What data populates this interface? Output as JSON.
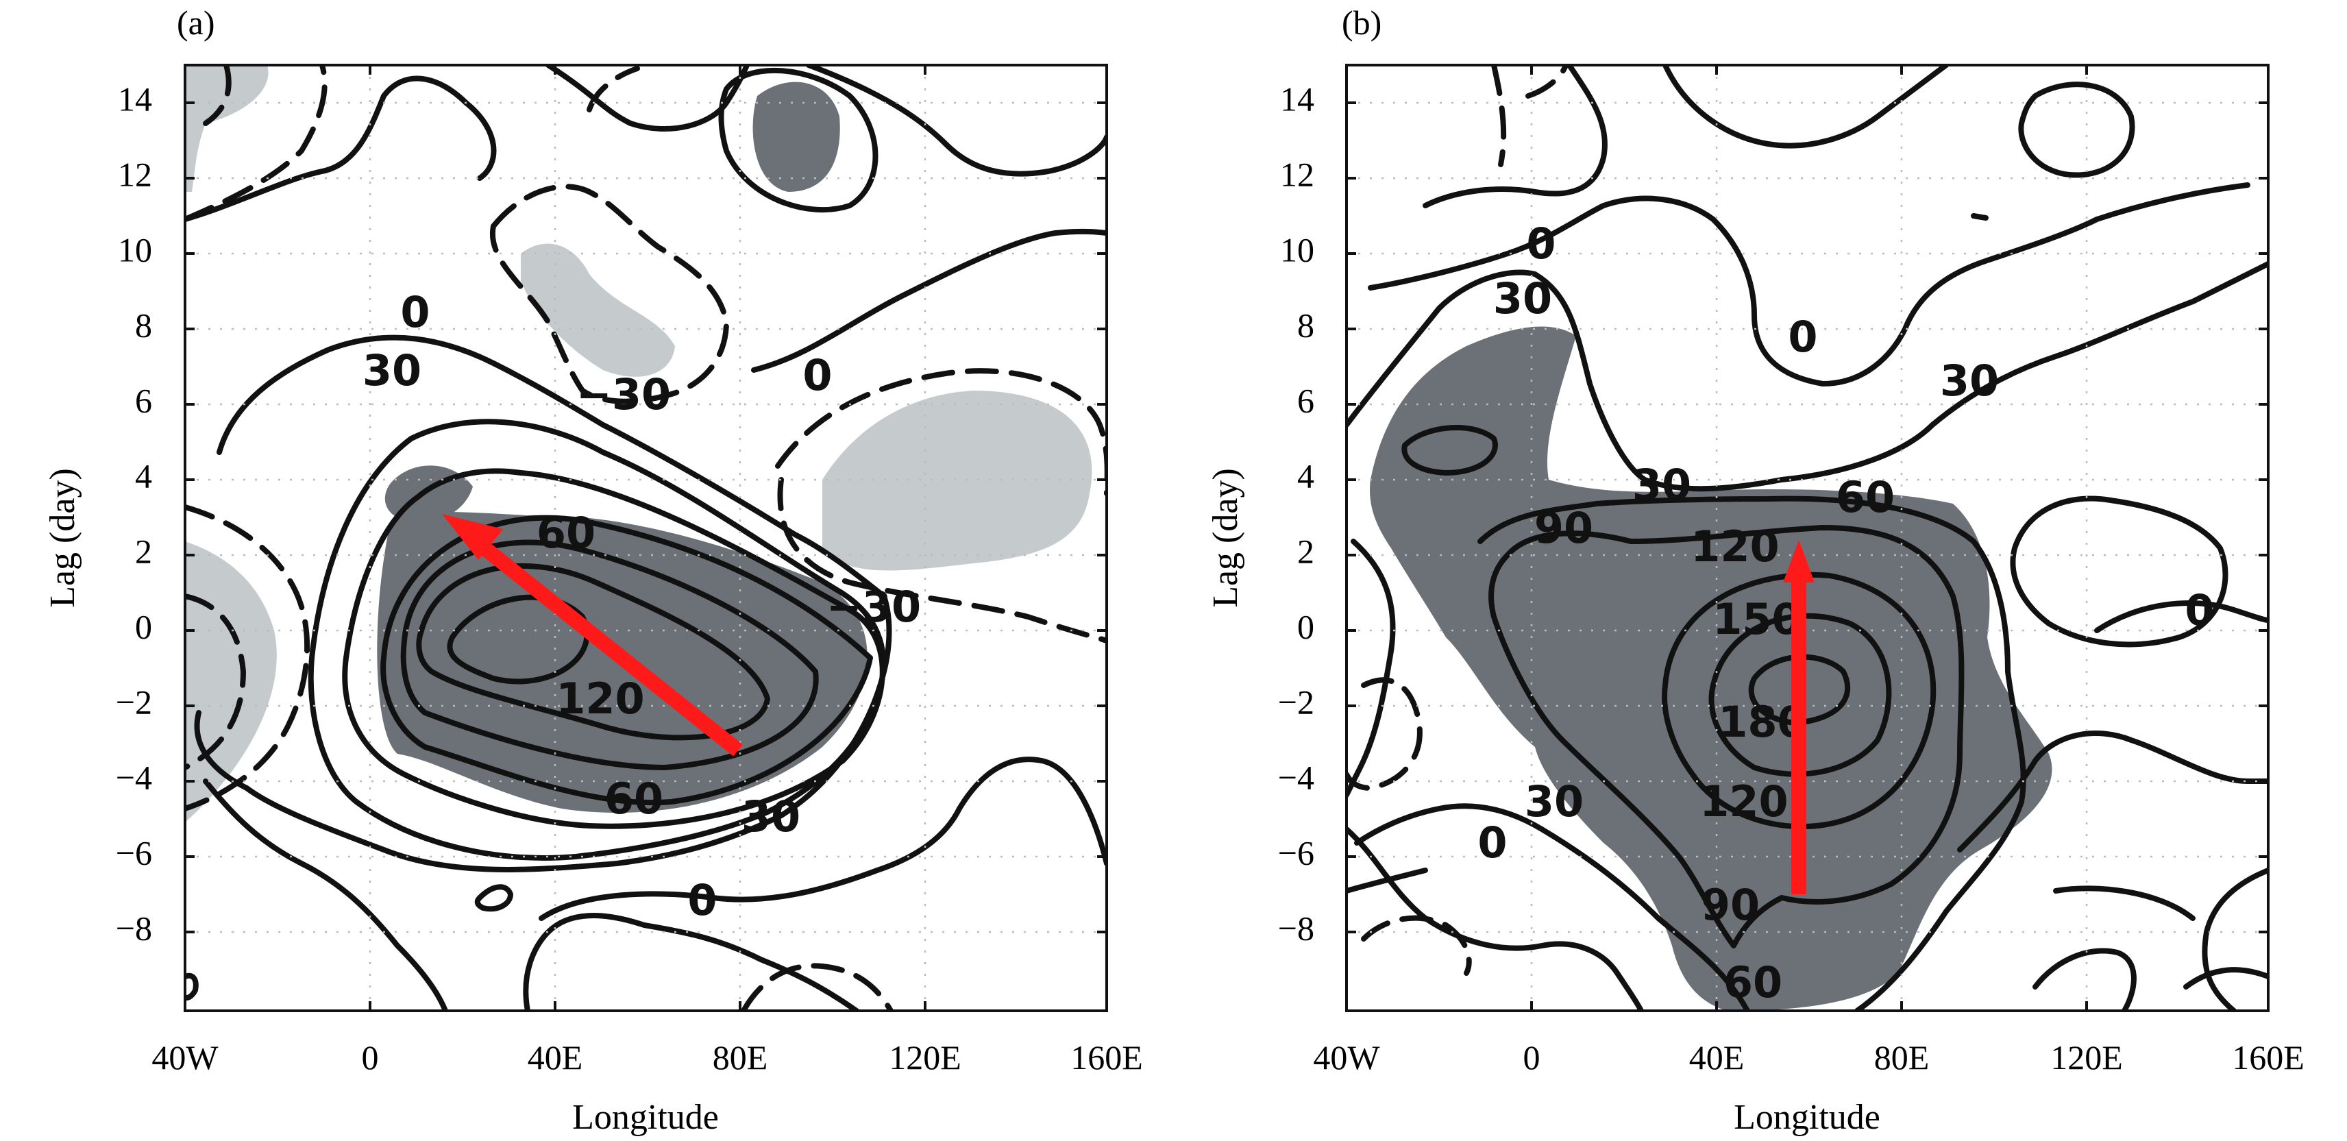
{
  "chart_data": [
    {
      "type": "contour",
      "panel_label": "(a)",
      "xlabel": "Longitude",
      "ylabel": "Lag (day)",
      "x_ticks": [
        {
          "value": -40,
          "label": "40W"
        },
        {
          "value": 0,
          "label": "0"
        },
        {
          "value": 40,
          "label": "40E"
        },
        {
          "value": 80,
          "label": "80E"
        },
        {
          "value": 120,
          "label": "120E"
        },
        {
          "value": 160,
          "label": "160E"
        }
      ],
      "y_ticks": [
        {
          "value": 14,
          "label": "14"
        },
        {
          "value": 12,
          "label": "12"
        },
        {
          "value": 10,
          "label": "10"
        },
        {
          "value": 8,
          "label": "8"
        },
        {
          "value": 6,
          "label": "6"
        },
        {
          "value": 4,
          "label": "4"
        },
        {
          "value": 2,
          "label": "2"
        },
        {
          "value": 0,
          "label": "0"
        },
        {
          "value": -2,
          "label": "−2"
        },
        {
          "value": -4,
          "label": "−4"
        },
        {
          "value": -6,
          "label": "−6"
        },
        {
          "value": -8,
          "label": "−8"
        }
      ],
      "xlim": [
        -40,
        160
      ],
      "ylim": [
        -10,
        15
      ],
      "grid": true,
      "contour_labels": [
        {
          "text": "0",
          "x": 10,
          "y": 8.5
        },
        {
          "text": "30",
          "x": 6,
          "y": 7.0
        },
        {
          "text": "−30",
          "x": 17.5,
          "y": 6.2
        },
        {
          "text": "0",
          "x": 58,
          "y": 6.8
        },
        {
          "text": "60",
          "x": 48,
          "y": 2.6
        },
        {
          "text": "120",
          "x": 48,
          "y": -1.8
        },
        {
          "text": "60",
          "x": 53,
          "y": -4.4
        },
        {
          "text": "30",
          "x": 88,
          "y": -4.9
        },
        {
          "text": "−30",
          "x": 90,
          "y": 0.6
        },
        {
          "text": "0",
          "x": 75,
          "y": -7.1
        }
      ],
      "arrow": {
        "from": {
          "x": 80,
          "y": -3
        },
        "to": {
          "x": 15,
          "y": 3.3
        },
        "color": "#ff1a1a"
      }
    },
    {
      "type": "contour",
      "panel_label": "(b)",
      "xlabel": "Longitude",
      "ylabel": "Lag (day)",
      "x_ticks": [
        {
          "value": -40,
          "label": "40W"
        },
        {
          "value": 0,
          "label": "0"
        },
        {
          "value": 40,
          "label": "40E"
        },
        {
          "value": 80,
          "label": "80E"
        },
        {
          "value": 120,
          "label": "120E"
        },
        {
          "value": 160,
          "label": "160E"
        }
      ],
      "y_ticks": [
        {
          "value": 14,
          "label": "14"
        },
        {
          "value": 12,
          "label": "12"
        },
        {
          "value": 10,
          "label": "10"
        },
        {
          "value": 8,
          "label": "8"
        },
        {
          "value": 6,
          "label": "6"
        },
        {
          "value": 4,
          "label": "4"
        },
        {
          "value": 2,
          "label": "2"
        },
        {
          "value": 0,
          "label": "0"
        },
        {
          "value": -2,
          "label": "−2"
        },
        {
          "value": -4,
          "label": "−4"
        },
        {
          "value": -6,
          "label": "−6"
        },
        {
          "value": -8,
          "label": "−8"
        }
      ],
      "xlim": [
        -40,
        160
      ],
      "ylim": [
        -10,
        15
      ],
      "grid": true,
      "contour_labels": [
        {
          "text": "0",
          "x": 2,
          "y": 10.2
        },
        {
          "text": "30",
          "x": -2,
          "y": 8.8
        },
        {
          "text": "0",
          "x": 59,
          "y": 7.7
        },
        {
          "text": "30",
          "x": 95,
          "y": 6.6
        },
        {
          "text": "30",
          "x": 28,
          "y": 3.9
        },
        {
          "text": "60",
          "x": 72,
          "y": 3.6
        },
        {
          "text": "90",
          "x": 12,
          "y": 2.7
        },
        {
          "text": "120",
          "x": 44,
          "y": 2.2
        },
        {
          "text": "150",
          "x": 49,
          "y": 0.3
        },
        {
          "text": "180",
          "x": 50,
          "y": -2.4
        },
        {
          "text": "120",
          "x": 46,
          "y": -4.6
        },
        {
          "text": "30",
          "x": 5,
          "y": -4.6
        },
        {
          "text": "0",
          "x": -8,
          "y": -5.7
        },
        {
          "text": "90",
          "x": 43,
          "y": -7.4
        },
        {
          "text": "60",
          "x": 48,
          "y": -9.5
        },
        {
          "text": "0",
          "x": 145,
          "y": 0.5
        }
      ],
      "arrow": {
        "from": {
          "x": 58,
          "y": -7
        },
        "to": {
          "x": 58,
          "y": 2.2
        },
        "color": "#ff1a1a"
      }
    }
  ]
}
